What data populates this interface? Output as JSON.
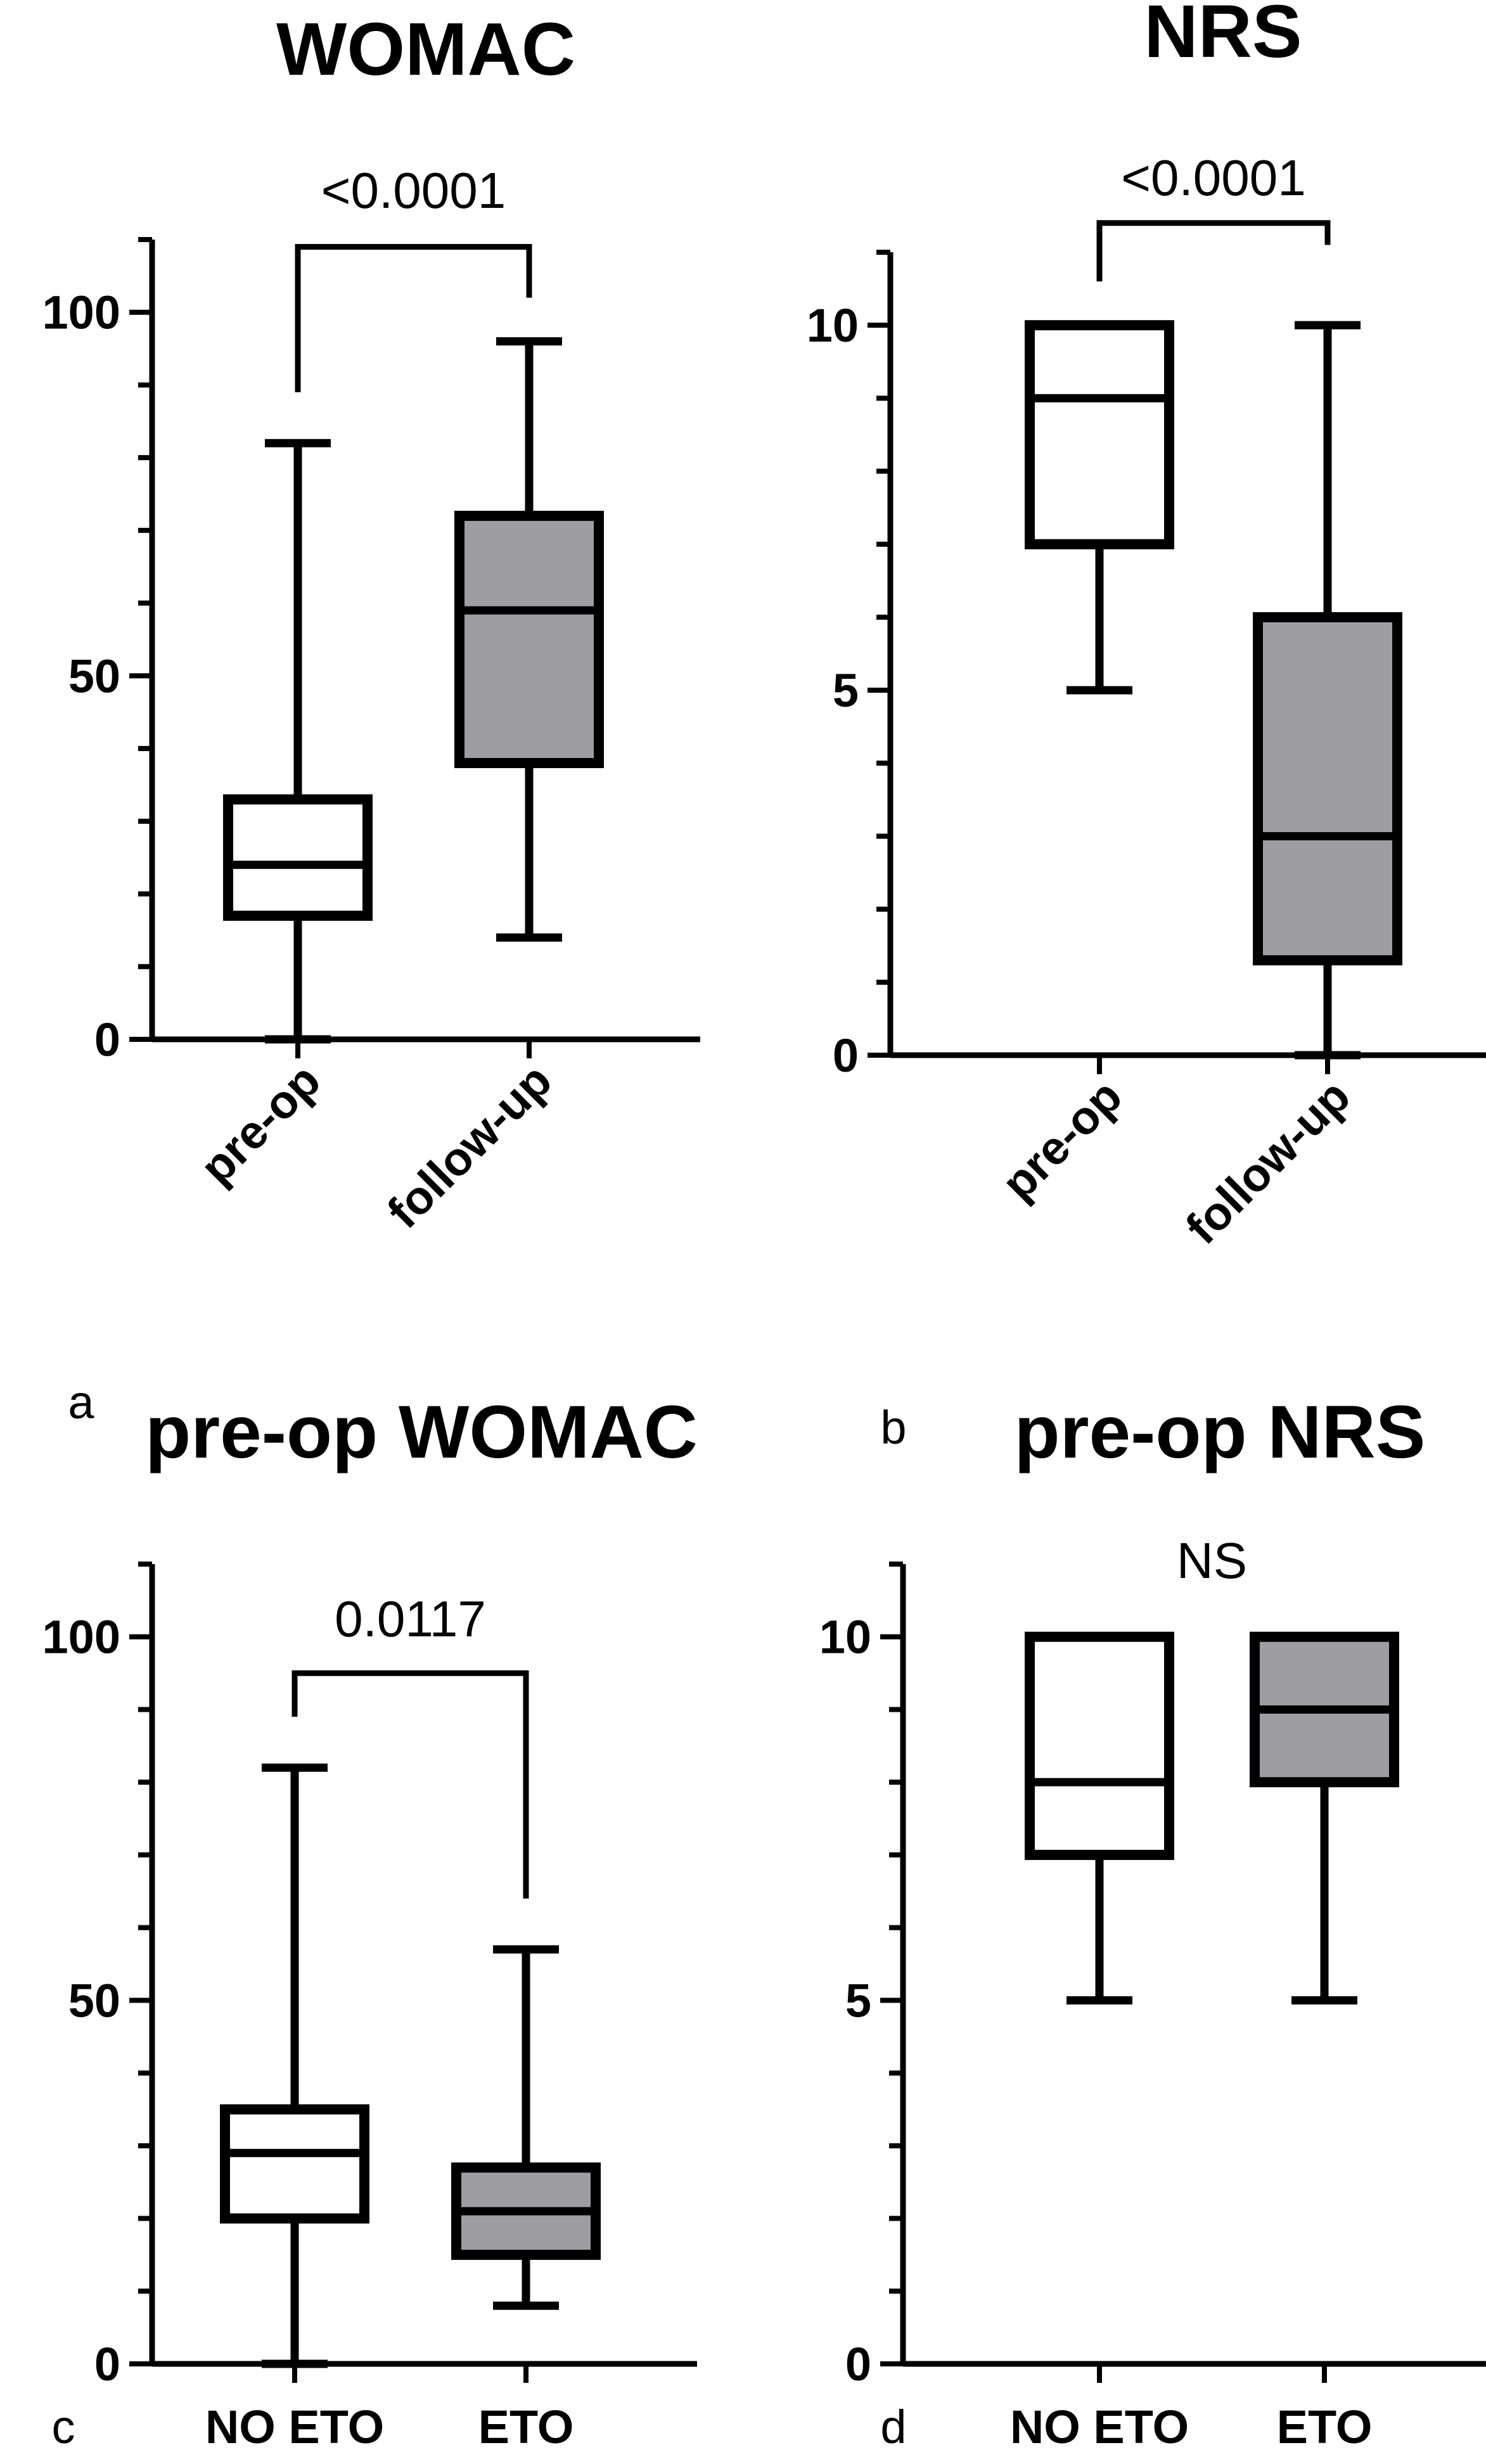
{
  "panel_labels": [
    "a",
    "b",
    "c",
    "d"
  ],
  "chart_data": [
    {
      "type": "boxplot",
      "title": "WOMAC",
      "ylim": [
        0,
        110
      ],
      "ytick_values": [
        0,
        50,
        100
      ],
      "ytick_labels": [
        "0",
        "50",
        "100"
      ],
      "minor_tick_step": 10,
      "categories": [
        "pre-op",
        "follow-up"
      ],
      "category_label_rotation": "rotated",
      "boxes": [
        {
          "name": "pre-op",
          "min": 0,
          "q1": 17,
          "median": 24,
          "q3": 33,
          "max": 82,
          "fill": "#ffffff"
        },
        {
          "name": "follow-up",
          "min": 14,
          "q1": 38,
          "median": 59,
          "q3": 72,
          "max": 96,
          "fill": "#9e9ea2"
        }
      ],
      "comparison": {
        "label": "<0.0001",
        "bracket_y": 109,
        "left_end": 89,
        "right_end": 102
      }
    },
    {
      "type": "boxplot",
      "title": "NRS",
      "ylim": [
        0,
        11
      ],
      "ytick_values": [
        0,
        5,
        10
      ],
      "ytick_labels": [
        "0",
        "5",
        "10"
      ],
      "minor_tick_step": 1,
      "categories": [
        "pre-op",
        "follow-up"
      ],
      "category_label_rotation": "rotated",
      "boxes": [
        {
          "name": "pre-op",
          "min": 5,
          "q1": 7,
          "median": 9,
          "q3": 10,
          "max": 10,
          "fill": "#ffffff"
        },
        {
          "name": "follow-up",
          "min": 0,
          "q1": 1.3,
          "median": 3,
          "q3": 6,
          "max": 10,
          "fill": "#9e9ea2"
        }
      ],
      "comparison": {
        "label": "<0.0001",
        "bracket_y": 11.4,
        "left_end": 10.6,
        "right_end": 11.1
      }
    },
    {
      "type": "boxplot",
      "title": "pre-op WOMAC",
      "ylim": [
        0,
        110
      ],
      "ytick_values": [
        0,
        50,
        100
      ],
      "ytick_labels": [
        "0",
        "50",
        "100"
      ],
      "minor_tick_step": 10,
      "categories": [
        "NO ETO",
        "ETO"
      ],
      "category_label_rotation": "horizontal",
      "boxes": [
        {
          "name": "NO ETO",
          "min": 0,
          "q1": 20,
          "median": 29,
          "q3": 35,
          "max": 82,
          "fill": "#ffffff"
        },
        {
          "name": "ETO",
          "min": 8,
          "q1": 15,
          "median": 21,
          "q3": 27,
          "max": 57,
          "fill": "#9e9ea2"
        }
      ],
      "comparison": {
        "label": "0.0117",
        "bracket_y": 95,
        "left_end": 89,
        "right_end": 64
      }
    },
    {
      "type": "boxplot",
      "title": "pre-op NRS",
      "ylim": [
        0,
        11
      ],
      "ytick_values": [
        0,
        5,
        10
      ],
      "ytick_labels": [
        "0",
        "5",
        "10"
      ],
      "minor_tick_step": 1,
      "categories": [
        "NO ETO",
        "ETO"
      ],
      "category_label_rotation": "horizontal",
      "boxes": [
        {
          "name": "NO ETO",
          "min": 5,
          "q1": 7,
          "median": 8,
          "q3": 10,
          "max": 10,
          "fill": "#ffffff"
        },
        {
          "name": "ETO",
          "min": 5,
          "q1": 8,
          "median": 9,
          "q3": 10,
          "max": 10,
          "fill": "#9e9ea2"
        }
      ],
      "comparison": {
        "label": "NS"
      }
    }
  ]
}
